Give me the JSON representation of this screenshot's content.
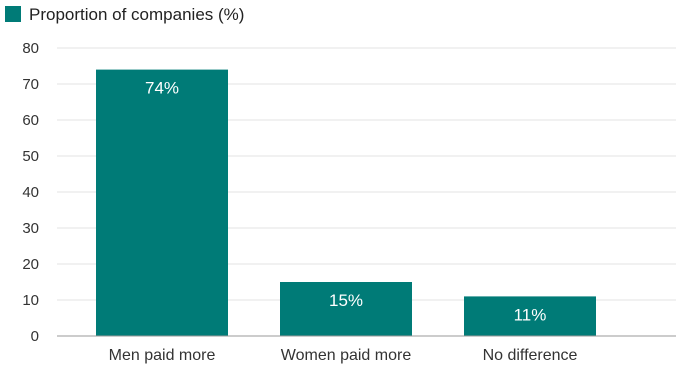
{
  "chart_data": {
    "type": "bar",
    "categories": [
      "Men paid more",
      "Women paid more",
      "No difference"
    ],
    "series": [
      {
        "name": "Proportion of companies (%)",
        "values": [
          74,
          15,
          11
        ],
        "color": "#007b77"
      }
    ],
    "data_labels": [
      "74%",
      "15%",
      "11%"
    ],
    "ylim": [
      0,
      80
    ],
    "yticks": [
      0,
      10,
      20,
      30,
      40,
      50,
      60,
      70,
      80
    ],
    "grid": true,
    "legend_position": "top-left"
  }
}
